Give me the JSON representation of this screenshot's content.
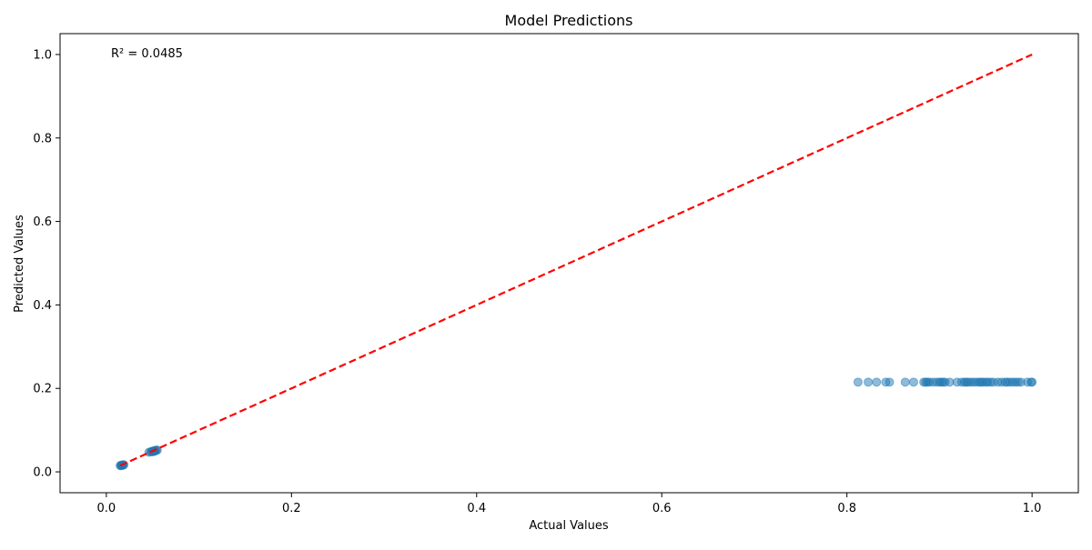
{
  "chart_data": {
    "type": "scatter",
    "title": "Model Predictions",
    "xlabel": "Actual Values",
    "ylabel": "Predicted Values",
    "xlim": [
      -0.05,
      1.05
    ],
    "ylim": [
      -0.05,
      1.05
    ],
    "xticks": [
      0.0,
      0.2,
      0.4,
      0.6,
      0.8,
      1.0
    ],
    "xtick_labels": [
      "0.0",
      "0.2",
      "0.4",
      "0.6",
      "0.8",
      "1.0"
    ],
    "yticks": [
      0.0,
      0.2,
      0.4,
      0.6,
      0.8,
      1.0
    ],
    "ytick_labels": [
      "0.0",
      "0.2",
      "0.4",
      "0.6",
      "0.8",
      "1.0"
    ],
    "grid": false,
    "legend": "none",
    "annotation": "R² = 0.0485",
    "reference_line": {
      "x": [
        0.015,
        1.0
      ],
      "y": [
        0.015,
        1.0
      ],
      "style": "dashed",
      "color": "#ff0000"
    },
    "series": [
      {
        "color": "#1f77b4",
        "opacity": 0.5,
        "points": [
          [
            0.015,
            0.015
          ],
          [
            0.016,
            0.016
          ],
          [
            0.017,
            0.016
          ],
          [
            0.018,
            0.017
          ],
          [
            0.019,
            0.017
          ],
          [
            0.016,
            0.015
          ],
          [
            0.018,
            0.016
          ],
          [
            0.046,
            0.047
          ],
          [
            0.048,
            0.048
          ],
          [
            0.049,
            0.049
          ],
          [
            0.05,
            0.049
          ],
          [
            0.051,
            0.05
          ],
          [
            0.052,
            0.051
          ],
          [
            0.053,
            0.051
          ],
          [
            0.054,
            0.052
          ],
          [
            0.055,
            0.052
          ],
          [
            0.05,
            0.048
          ],
          [
            0.052,
            0.049
          ],
          [
            0.812,
            0.215
          ],
          [
            0.823,
            0.215
          ],
          [
            0.832,
            0.215
          ],
          [
            0.842,
            0.215
          ],
          [
            0.846,
            0.215
          ],
          [
            0.863,
            0.215
          ],
          [
            0.872,
            0.215
          ],
          [
            0.883,
            0.215
          ],
          [
            0.885,
            0.215
          ],
          [
            0.887,
            0.215
          ],
          [
            0.889,
            0.215
          ],
          [
            0.893,
            0.215
          ],
          [
            0.897,
            0.215
          ],
          [
            0.9,
            0.215
          ],
          [
            0.902,
            0.215
          ],
          [
            0.904,
            0.215
          ],
          [
            0.906,
            0.215
          ],
          [
            0.911,
            0.215
          ],
          [
            0.919,
            0.215
          ],
          [
            0.924,
            0.215
          ],
          [
            0.927,
            0.215
          ],
          [
            0.929,
            0.215
          ],
          [
            0.931,
            0.215
          ],
          [
            0.934,
            0.215
          ],
          [
            0.937,
            0.215
          ],
          [
            0.94,
            0.215
          ],
          [
            0.943,
            0.215
          ],
          [
            0.945,
            0.215
          ],
          [
            0.947,
            0.215
          ],
          [
            0.95,
            0.215
          ],
          [
            0.952,
            0.215
          ],
          [
            0.955,
            0.215
          ],
          [
            0.958,
            0.215
          ],
          [
            0.963,
            0.215
          ],
          [
            0.967,
            0.215
          ],
          [
            0.971,
            0.215
          ],
          [
            0.973,
            0.215
          ],
          [
            0.976,
            0.215
          ],
          [
            0.979,
            0.215
          ],
          [
            0.982,
            0.215
          ],
          [
            0.985,
            0.215
          ],
          [
            0.988,
            0.215
          ],
          [
            0.995,
            0.215
          ],
          [
            0.999,
            0.215
          ],
          [
            1.0,
            0.215
          ]
        ]
      }
    ]
  }
}
